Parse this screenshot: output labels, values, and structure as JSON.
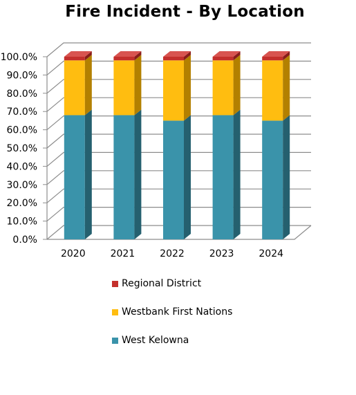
{
  "chart_data": {
    "type": "bar",
    "stacked": true,
    "three_d": true,
    "title": "Fire Incident - By Location",
    "categories": [
      "2020",
      "2021",
      "2022",
      "2023",
      "2024"
    ],
    "series": [
      {
        "name": "West Kelowna",
        "color": "#3a93aa",
        "side_color": "#25606f",
        "top_color": "#58aec2",
        "values": [
          68,
          68,
          65,
          68,
          65
        ]
      },
      {
        "name": "Westbank First Nations",
        "color": "#ffbd10",
        "side_color": "#b38000",
        "top_color": "#ffd35a",
        "values": [
          30,
          30,
          33,
          30,
          33
        ]
      },
      {
        "name": "Regional District",
        "color": "#c4302c",
        "side_color": "#8a1d1a",
        "top_color": "#d85450",
        "values": [
          2,
          2,
          2,
          2,
          2
        ]
      }
    ],
    "y_ticks": [
      "0.0%",
      "10.0%",
      "20.0%",
      "30.0%",
      "40.0%",
      "50.0%",
      "60.0%",
      "70.0%",
      "80.0%",
      "90.0%",
      "100.0%"
    ],
    "ylim": [
      0,
      100
    ],
    "grid": true,
    "legend_position": "bottom"
  }
}
